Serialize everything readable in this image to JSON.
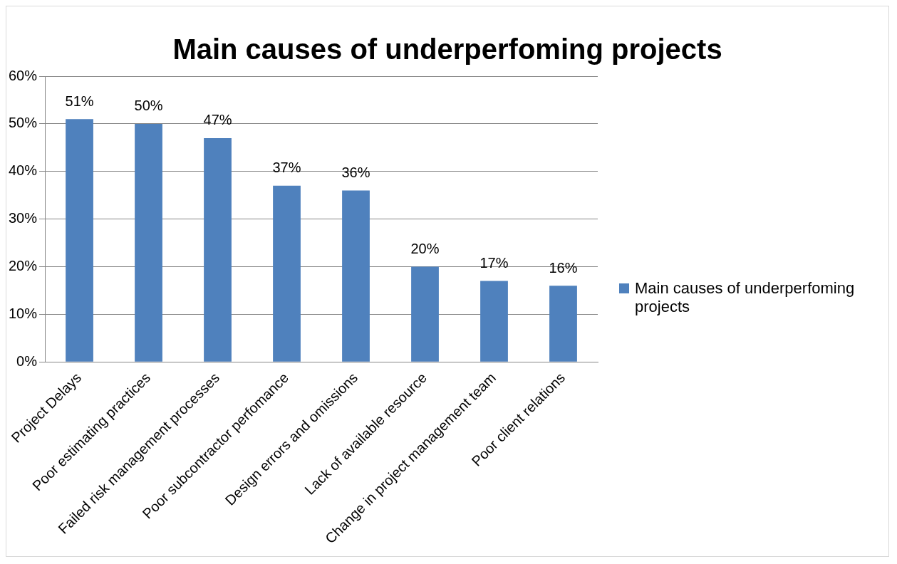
{
  "chart_data": {
    "type": "bar",
    "title": "Main causes of underperfoming projects",
    "categories": [
      "Project Delays",
      "Poor estimating practices",
      "Failed risk management processes",
      "Poor subcontractor perfomance",
      "Design errors and omissions",
      "Lack of available resource",
      "Change in project management team",
      "Poor client relations"
    ],
    "series": [
      {
        "name": "Main causes of underperfoming projects",
        "color": "#4f81bd",
        "values": [
          51,
          50,
          47,
          37,
          36,
          20,
          17,
          16
        ],
        "value_labels": [
          "51%",
          "50%",
          "47%",
          "37%",
          "36%",
          "20%",
          "17%",
          "16%"
        ]
      }
    ],
    "ylim": [
      0,
      60
    ],
    "yticks": [
      {
        "value": 0,
        "label": "0%"
      },
      {
        "value": 10,
        "label": "10%"
      },
      {
        "value": 20,
        "label": "20%"
      },
      {
        "value": 30,
        "label": "30%"
      },
      {
        "value": 40,
        "label": "40%"
      },
      {
        "value": 50,
        "label": "50%"
      },
      {
        "value": 60,
        "label": "60%"
      }
    ],
    "grid": "y",
    "legend": "right"
  }
}
